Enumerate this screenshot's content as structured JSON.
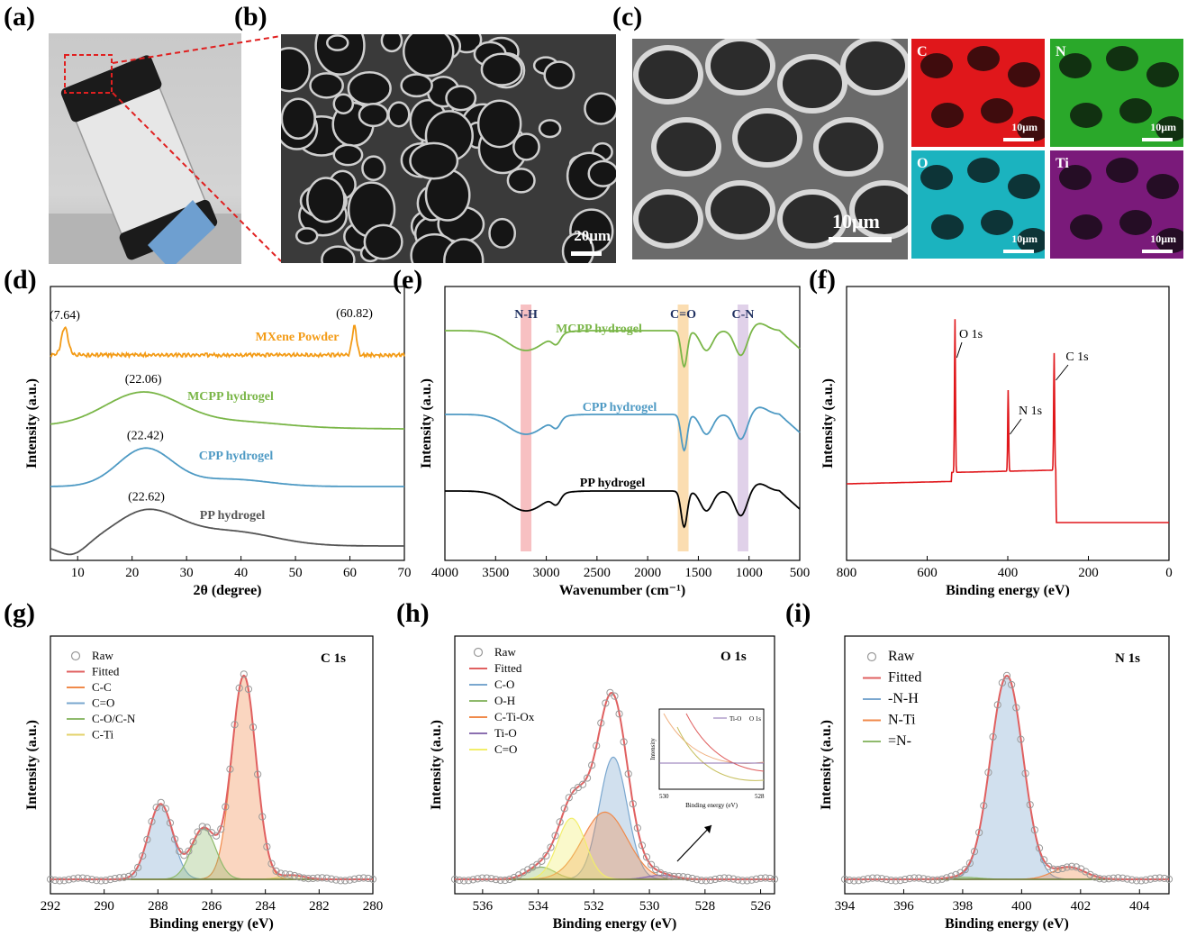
{
  "panels": {
    "a": "(a)",
    "b": "(b)",
    "c": "(c)",
    "d": "(d)",
    "e": "(e)",
    "f": "(f)",
    "g": "(g)",
    "h": "(h)",
    "i": "(i)"
  },
  "images": {
    "b_scale": "20μm",
    "c_scale": "10μm",
    "maps": [
      {
        "element": "C",
        "scale": "10μm",
        "color": "#e0171b"
      },
      {
        "element": "N",
        "scale": "10μm",
        "color": "#2aa82a"
      },
      {
        "element": "O",
        "scale": "10μm",
        "color": "#1bb3bf"
      },
      {
        "element": "Ti",
        "scale": "10μm",
        "color": "#7a1a7a"
      }
    ]
  },
  "chart_data": [
    {
      "id": "d",
      "type": "line",
      "xlabel": "2θ (degree)",
      "ylabel": "Intensity (a.u.)",
      "xlim": [
        5,
        70
      ],
      "xticks": [
        10,
        20,
        30,
        40,
        50,
        60,
        70
      ],
      "series": [
        {
          "name": "MXene Powder",
          "color": "#f39b16",
          "peaks": [
            7.64,
            60.82
          ],
          "peak_labels": [
            "(7.64)",
            "(60.82)"
          ]
        },
        {
          "name": "MCPP hydrogel",
          "color": "#7ab648",
          "peaks": [
            22.06
          ],
          "peak_labels": [
            "(22.06)"
          ]
        },
        {
          "name": "CPP hydrogel",
          "color": "#4e9ac4",
          "peaks": [
            22.42
          ],
          "peak_labels": [
            "(22.42)"
          ]
        },
        {
          "name": "PP hydrogel",
          "color": "#555555",
          "peaks": [
            22.62
          ],
          "peak_labels": [
            "(22.62)"
          ]
        }
      ]
    },
    {
      "id": "e",
      "type": "line",
      "xlabel": "Wavenumber (cm⁻¹)",
      "ylabel": "Intensity (a.u.)",
      "xlim": [
        4000,
        500
      ],
      "xticks": [
        4000,
        3500,
        3000,
        2500,
        2000,
        1500,
        1000,
        500
      ],
      "bands": [
        {
          "label": "N-H",
          "center": 3200,
          "color": "#f4a5a8"
        },
        {
          "label": "C=O",
          "center": 1650,
          "color": "#f9cf90"
        },
        {
          "label": "C-N",
          "center": 1060,
          "color": "#d3bde0"
        }
      ],
      "series": [
        {
          "name": "MCPP hydrogel",
          "color": "#7ab648"
        },
        {
          "name": "CPP hydrogel",
          "color": "#4e9ac4"
        },
        {
          "name": "PP hydrogel",
          "color": "#000000"
        }
      ]
    },
    {
      "id": "f",
      "type": "line",
      "xlabel": "Binding energy (eV)",
      "ylabel": "Intensity (a.u.)",
      "xlim": [
        800,
        0
      ],
      "xticks": [
        800,
        600,
        400,
        200,
        0
      ],
      "series": [
        {
          "name": "survey",
          "color": "#e0171b"
        }
      ],
      "peaks": [
        {
          "label": "O 1s",
          "x": 531
        },
        {
          "label": "N 1s",
          "x": 399
        },
        {
          "label": "C 1s",
          "x": 285
        }
      ]
    },
    {
      "id": "g",
      "type": "line",
      "title": "C 1s",
      "xlabel": "Binding energy (eV)",
      "ylabel": "Intensity (a.u.)",
      "xlim": [
        292,
        280
      ],
      "xticks": [
        292,
        290,
        288,
        286,
        284,
        282,
        280
      ],
      "legend": [
        "Raw",
        "Fitted",
        "C-C",
        "C=O",
        "C-O/C-N",
        "C-Ti"
      ],
      "components": [
        {
          "name": "C-C",
          "center": 284.8,
          "height": 1.0,
          "color": "#f08a4b"
        },
        {
          "name": "C=O",
          "center": 287.9,
          "height": 0.37,
          "color": "#7aa7cf"
        },
        {
          "name": "C-O/C-N",
          "center": 286.3,
          "height": 0.25,
          "color": "#8fba6c"
        },
        {
          "name": "C-Ti",
          "center": 283.0,
          "height": 0.02,
          "color": "#e3d26a"
        }
      ]
    },
    {
      "id": "h",
      "type": "line",
      "title": "O 1s",
      "xlabel": "Binding energy (eV)",
      "ylabel": "Intensity (a.u.)",
      "xlim": [
        537,
        525.5
      ],
      "xticks": [
        536,
        534,
        532,
        530,
        528,
        526
      ],
      "legend": [
        "Raw",
        "Fitted",
        "C-O",
        "O-H",
        "C-Ti-Ox",
        "Ti-O",
        "C=O"
      ],
      "components": [
        {
          "name": "C-O",
          "center": 531.3,
          "height": 0.6,
          "color": "#7aa7cf"
        },
        {
          "name": "O-H",
          "center": 533.9,
          "height": 0.06,
          "color": "#8fba6c"
        },
        {
          "name": "C-Ti-Ox",
          "center": 531.6,
          "height": 0.33,
          "color": "#f08a4b"
        },
        {
          "name": "Ti-O",
          "center": 529.6,
          "height": 0.02,
          "color": "#8b6fb0"
        },
        {
          "name": "C=O",
          "center": 532.8,
          "height": 0.3,
          "color": "#f2ee6a"
        }
      ],
      "inset": {
        "xlabel": "Binding energy (eV)",
        "ylabel": "Intensity",
        "xticks": [
          530,
          528
        ],
        "labels": [
          "Ti-O",
          "O 1s"
        ]
      }
    },
    {
      "id": "i",
      "type": "line",
      "title": "N 1s",
      "xlabel": "Binding energy (eV)",
      "ylabel": "Intensity (a.u.)",
      "xlim": [
        394,
        405
      ],
      "xticks": [
        394,
        396,
        398,
        400,
        402,
        404
      ],
      "legend": [
        "Raw",
        "Fitted",
        "-N-H",
        "N-Ti",
        "=N-"
      ],
      "components": [
        {
          "name": "-N-H",
          "center": 399.5,
          "height": 1.0,
          "color": "#7aa7cf"
        },
        {
          "name": "N-Ti",
          "center": 401.6,
          "height": 0.06,
          "color": "#f08a4b"
        },
        {
          "name": "=N-",
          "center": 398.0,
          "height": 0.01,
          "color": "#8fba6c"
        }
      ]
    }
  ]
}
